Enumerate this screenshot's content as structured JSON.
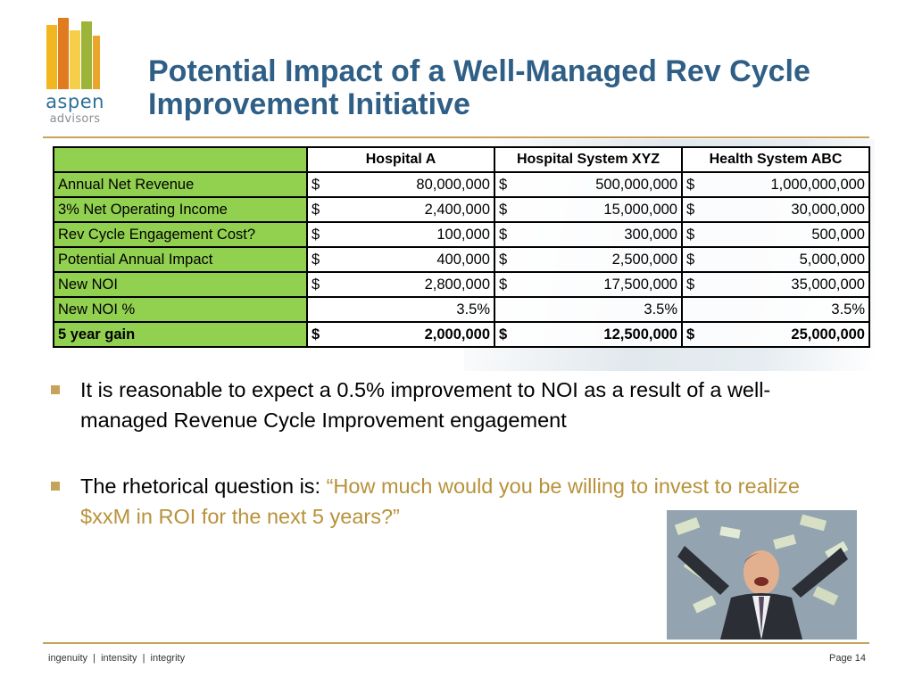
{
  "logo": {
    "word1": "aspen",
    "word2": "advisors"
  },
  "title": "Potential Impact of a Well-Managed Rev Cycle Improvement Initiative",
  "table": {
    "headers": [
      "Hospital A",
      "Hospital System XYZ",
      "Health System ABC"
    ],
    "rows": [
      {
        "label": "Annual Net Revenue",
        "cells": [
          [
            "$",
            "80,000,000"
          ],
          [
            "$",
            "500,000,000"
          ],
          [
            "$",
            "1,000,000,000"
          ]
        ]
      },
      {
        "label": "3% Net Operating Income",
        "cells": [
          [
            "$",
            "2,400,000"
          ],
          [
            "$",
            "15,000,000"
          ],
          [
            "$",
            "30,000,000"
          ]
        ]
      },
      {
        "label": "Rev Cycle Engagement Cost?",
        "cells": [
          [
            "$",
            "100,000"
          ],
          [
            "$",
            "300,000"
          ],
          [
            "$",
            "500,000"
          ]
        ]
      },
      {
        "label": "Potential Annual Impact",
        "cells": [
          [
            "$",
            "400,000"
          ],
          [
            "$",
            "2,500,000"
          ],
          [
            "$",
            "5,000,000"
          ]
        ]
      },
      {
        "label": "New NOI",
        "cells": [
          [
            "$",
            "2,800,000"
          ],
          [
            "$",
            "17,500,000"
          ],
          [
            "$",
            "35,000,000"
          ]
        ]
      },
      {
        "label": "New NOI %",
        "pct": [
          "3.5%",
          "3.5%",
          "3.5%"
        ]
      },
      {
        "label": "5 year gain",
        "bold": true,
        "cells": [
          [
            "$",
            "2,000,000"
          ],
          [
            "$",
            "12,500,000"
          ],
          [
            "$",
            "25,000,000"
          ]
        ]
      }
    ]
  },
  "bullets": {
    "b1": "It is reasonable to expect a 0.5% improvement to NOI as a result of a well-managed Revenue Cycle Improvement engagement",
    "b2_prefix": "The rhetorical question is: ",
    "b2_quote": "“How much would you be willing to invest to realize $xxM in ROI for the next 5 years?”"
  },
  "footer": {
    "left": "ingenuity  |  intensity  |  integrity",
    "right": "Page 14"
  },
  "colors": {
    "title": "#2f5f86",
    "accent": "#c7a35a",
    "label_green": "#92d050",
    "quote": "#b8923a"
  }
}
